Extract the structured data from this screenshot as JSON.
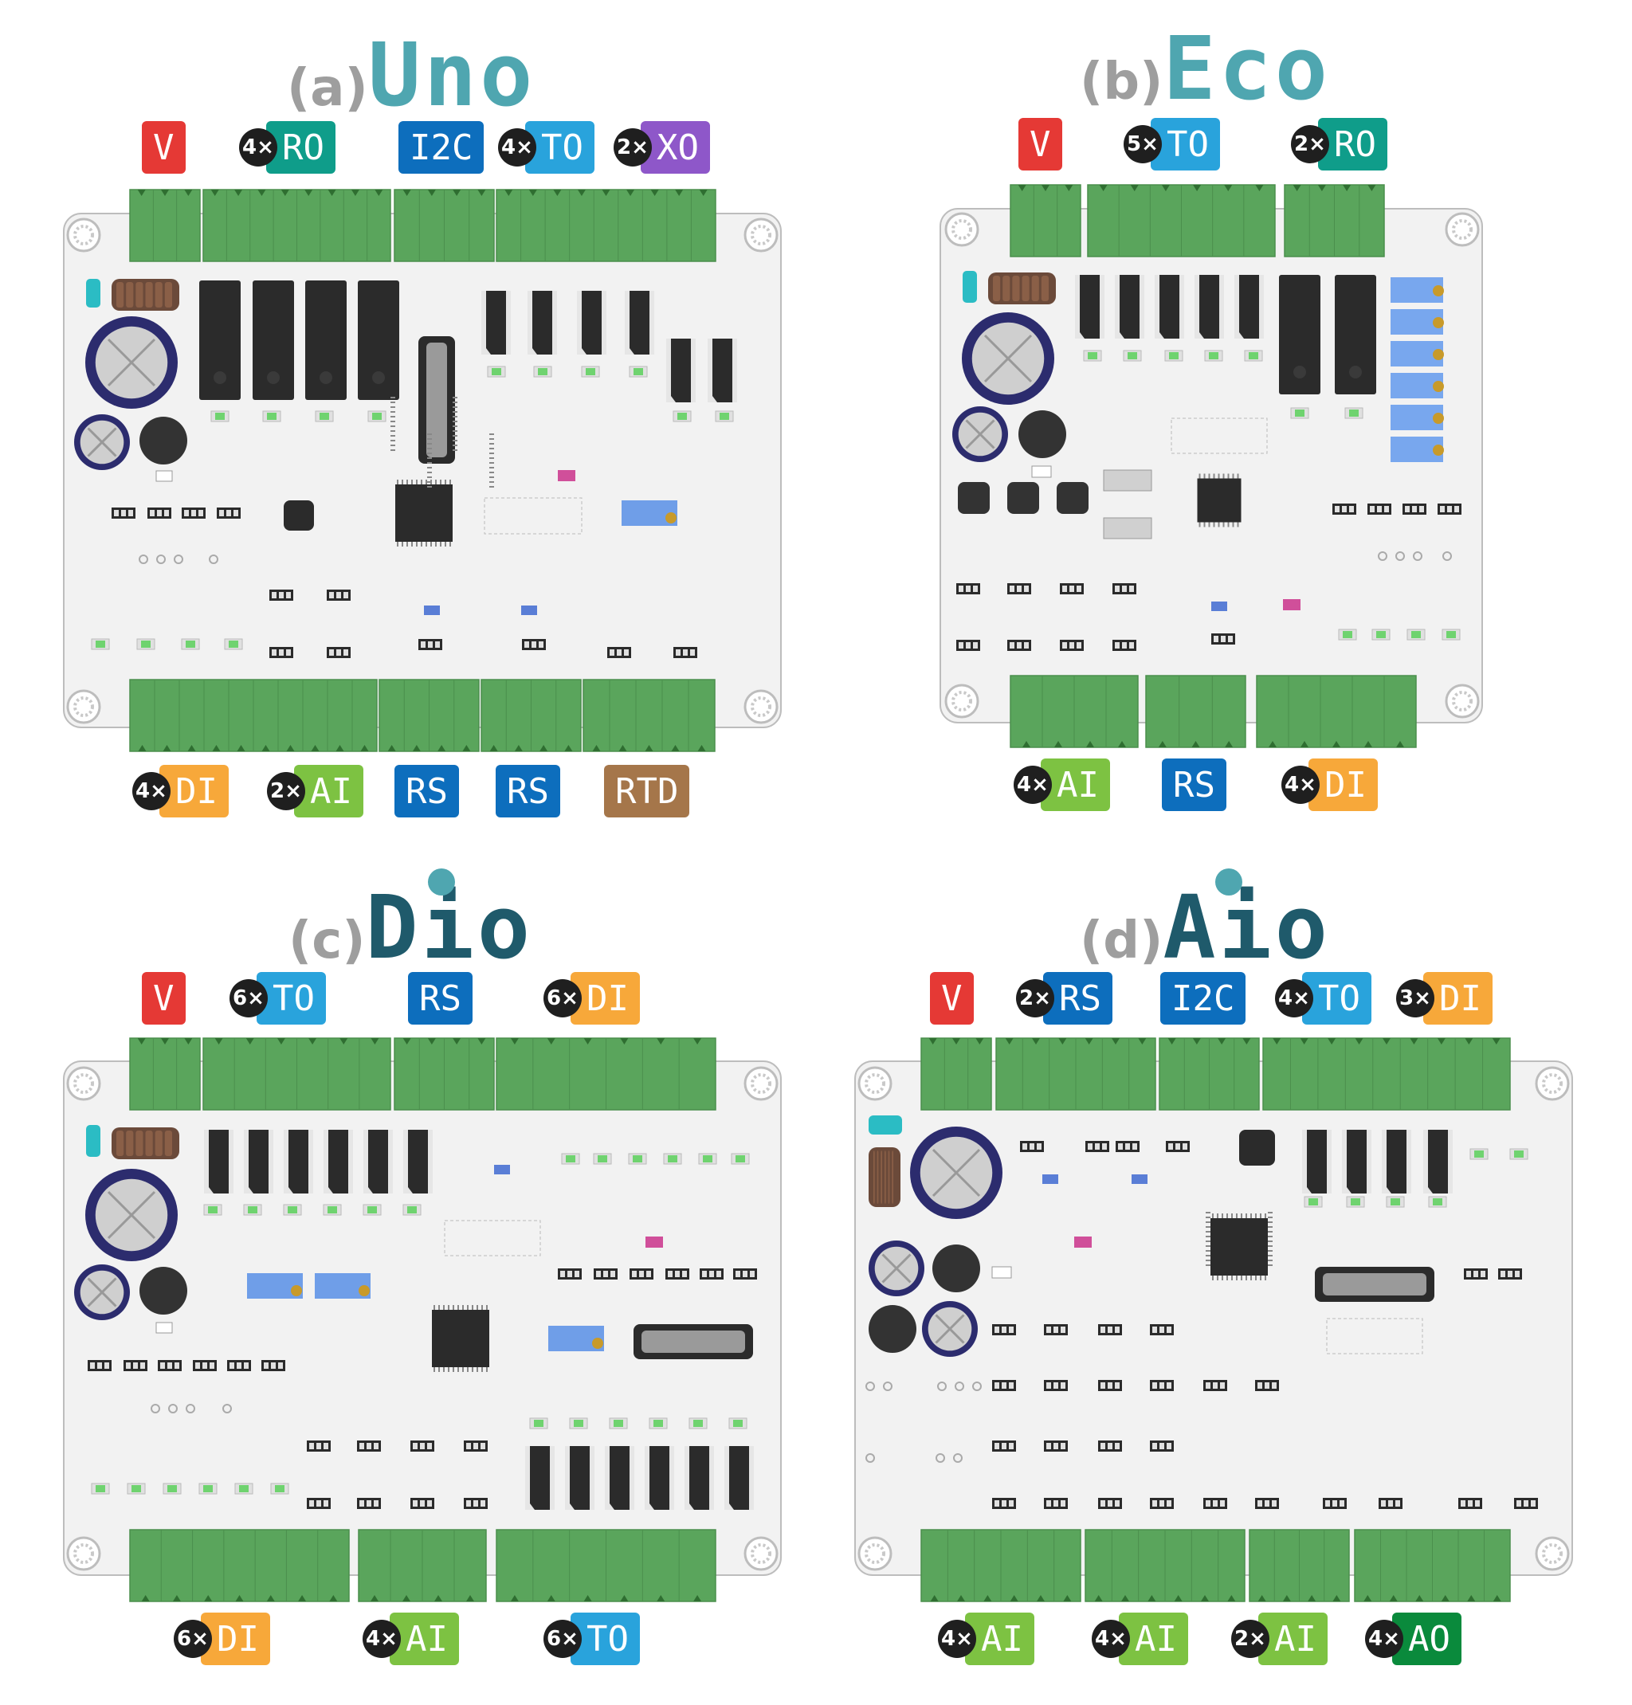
{
  "colors": {
    "V": "#e53935",
    "RO": "#0f9d8a",
    "I2C": "#0d6ebd",
    "TO": "#29a3dc",
    "XO": "#8e57c9",
    "DI": "#f7a83a",
    "AI": "#7dc242",
    "RS": "#0d6ebd",
    "RTD": "#a5764a",
    "AO": "#0a8a3c",
    "connector": "#5aa55c",
    "board": "#f2f2f2"
  },
  "boards": [
    {
      "label": "(a)",
      "name": "Uno",
      "name_color": "#4fa6b0",
      "has_dot": false,
      "top_badges": [
        {
          "count": "",
          "text": "V",
          "color": "#e53935"
        },
        {
          "count": "4×",
          "text": "RO",
          "color": "#0f9d8a"
        },
        {
          "count": "",
          "text": "I2C",
          "color": "#0d6ebd"
        },
        {
          "count": "4×",
          "text": "TO",
          "color": "#29a3dc"
        },
        {
          "count": "2×",
          "text": "XO",
          "color": "#8e57c9"
        }
      ],
      "bottom_badges": [
        {
          "count": "4×",
          "text": "DI",
          "color": "#f7a83a"
        },
        {
          "count": "2×",
          "text": "AI",
          "color": "#7dc242"
        },
        {
          "count": "",
          "text": "RS",
          "color": "#0d6ebd"
        },
        {
          "count": "",
          "text": "RS",
          "color": "#0d6ebd"
        },
        {
          "count": "",
          "text": "RTD",
          "color": "#a5764a"
        }
      ]
    },
    {
      "label": "(b)",
      "name": "Eco",
      "name_color": "#4fa6b0",
      "has_dot": false,
      "top_badges": [
        {
          "count": "",
          "text": "V",
          "color": "#e53935"
        },
        {
          "count": "5×",
          "text": "TO",
          "color": "#29a3dc"
        },
        {
          "count": "2×",
          "text": "RO",
          "color": "#0f9d8a"
        }
      ],
      "bottom_badges": [
        {
          "count": "4×",
          "text": "AI",
          "color": "#7dc242"
        },
        {
          "count": "",
          "text": "RS",
          "color": "#0d6ebd"
        },
        {
          "count": "4×",
          "text": "DI",
          "color": "#f7a83a"
        }
      ]
    },
    {
      "label": "(c)",
      "name": "Dio",
      "name_color": "#1f5a6b",
      "has_dot": true,
      "top_badges": [
        {
          "count": "",
          "text": "V",
          "color": "#e53935"
        },
        {
          "count": "6×",
          "text": "TO",
          "color": "#29a3dc"
        },
        {
          "count": "",
          "text": "RS",
          "color": "#0d6ebd"
        },
        {
          "count": "6×",
          "text": "DI",
          "color": "#f7a83a"
        }
      ],
      "bottom_badges": [
        {
          "count": "6×",
          "text": "DI",
          "color": "#f7a83a"
        },
        {
          "count": "4×",
          "text": "AI",
          "color": "#7dc242"
        },
        {
          "count": "6×",
          "text": "TO",
          "color": "#29a3dc"
        }
      ]
    },
    {
      "label": "(d)",
      "name": "Aio",
      "name_color": "#1f5a6b",
      "has_dot": true,
      "top_badges": [
        {
          "count": "",
          "text": "V",
          "color": "#e53935"
        },
        {
          "count": "2×",
          "text": "RS",
          "color": "#0d6ebd"
        },
        {
          "count": "",
          "text": "I2C",
          "color": "#0d6ebd"
        },
        {
          "count": "4×",
          "text": "TO",
          "color": "#29a3dc"
        },
        {
          "count": "3×",
          "text": "DI",
          "color": "#f7a83a"
        }
      ],
      "bottom_badges": [
        {
          "count": "4×",
          "text": "AI",
          "color": "#7dc242"
        },
        {
          "count": "4×",
          "text": "AI",
          "color": "#7dc242"
        },
        {
          "count": "2×",
          "text": "AI",
          "color": "#7dc242"
        },
        {
          "count": "4×",
          "text": "AO",
          "color": "#0a8a3c"
        }
      ]
    }
  ]
}
